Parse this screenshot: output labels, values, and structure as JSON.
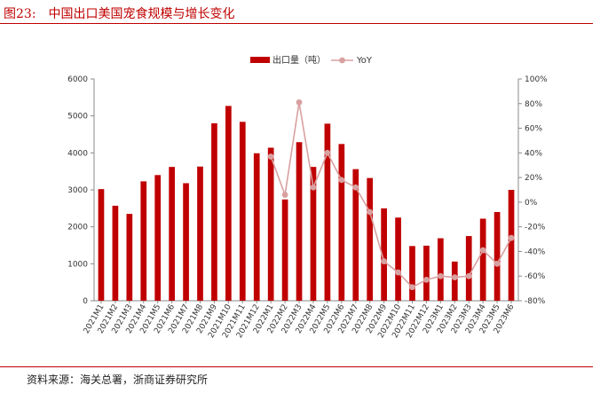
{
  "header": {
    "figure_number": "图23:",
    "title": "中国出口美国宠食规模与增长变化"
  },
  "source": "资料来源：海关总署，浙商证券研究所",
  "colors": {
    "bar": "#c00000",
    "line": "#d9a0a0",
    "rule": "#c00000"
  },
  "chart_data": {
    "type": "bar",
    "title": "中国出口美国宠食规模与增长变化",
    "categories": [
      "2021M1",
      "2021M2",
      "2021M3",
      "2021M4",
      "2021M5",
      "2021M6",
      "2021M7",
      "2021M8",
      "2021M9",
      "2021M10",
      "2021M11",
      "2021M12",
      "2022M1",
      "2022M2",
      "2022M3",
      "2022M4",
      "2022M5",
      "2022M6",
      "2022M7",
      "2022M8",
      "2022M9",
      "2022M10",
      "2022M11",
      "2022M12",
      "2023M1",
      "2023M2",
      "2023M3",
      "2023M4",
      "2023M5",
      "2023M6"
    ],
    "series": [
      {
        "name": "出口量（吨）",
        "type": "bar",
        "axis": "left",
        "values": [
          3020,
          2570,
          2350,
          3230,
          3400,
          3620,
          3180,
          3630,
          4800,
          5270,
          4840,
          3990,
          4140,
          2740,
          4290,
          3620,
          4790,
          4240,
          3560,
          3320,
          2500,
          2250,
          1480,
          1490,
          1690,
          1060,
          1750,
          2220,
          2400,
          3000
        ]
      },
      {
        "name": "YoY",
        "type": "line",
        "axis": "right",
        "values": [
          null,
          null,
          null,
          null,
          null,
          null,
          null,
          null,
          null,
          null,
          null,
          null,
          37,
          6,
          81,
          12,
          40,
          18,
          12,
          -8,
          -48,
          -57,
          -69,
          -63,
          -60,
          -61,
          -60,
          -39,
          -50,
          -29
        ]
      }
    ],
    "y_left": {
      "min": 0,
      "max": 6000,
      "ticks": [
        0,
        1000,
        2000,
        3000,
        4000,
        5000,
        6000
      ]
    },
    "y_right": {
      "min": -80,
      "max": 100,
      "ticks": [
        -80,
        -60,
        -40,
        -20,
        0,
        20,
        40,
        60,
        80,
        100
      ],
      "tick_labels": [
        "-80%",
        "-60%",
        "-40%",
        "-20%",
        "0%",
        "20%",
        "40%",
        "60%",
        "80%",
        "100%"
      ]
    },
    "legend_position": "top-center",
    "grid": false
  }
}
